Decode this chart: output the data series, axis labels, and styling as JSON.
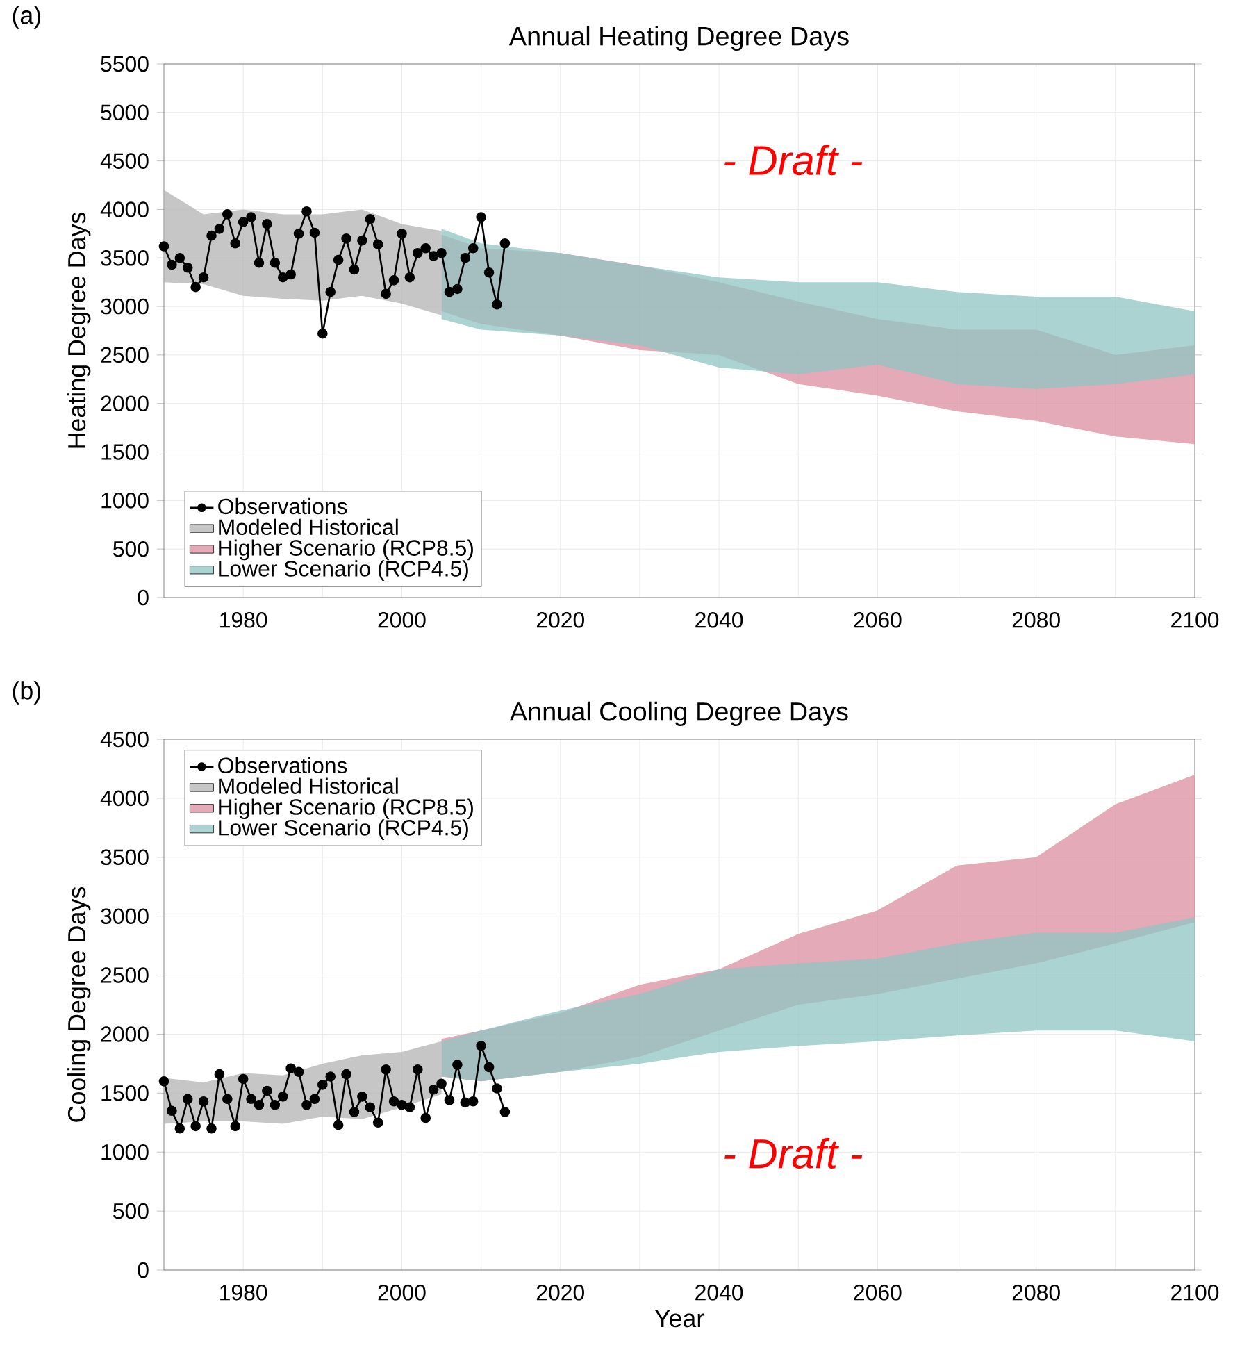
{
  "chart_data": [
    {
      "type": "area",
      "title": "Annual Heating Degree Days",
      "ylabel": "Heating Degree Days",
      "annotations": [
        "(a)",
        "- Draft -"
      ],
      "xlim": [
        1970,
        2100
      ],
      "xticks": [
        1980,
        2000,
        2020,
        2040,
        2060,
        2080,
        2100
      ],
      "ylim": [
        0,
        5500
      ],
      "yticks": [
        0,
        500,
        1000,
        1500,
        2000,
        2500,
        3000,
        3500,
        4000,
        4500,
        5000,
        5500
      ],
      "grid": true,
      "legend": "bottom left",
      "series": [
        {
          "name": "Observations",
          "type": "line",
          "color": "#000000",
          "marker": "circle",
          "line_style": "solid",
          "x": [
            1970,
            1971,
            1972,
            1973,
            1974,
            1975,
            1976,
            1977,
            1978,
            1979,
            1980,
            1981,
            1982,
            1983,
            1984,
            1985,
            1986,
            1987,
            1988,
            1989,
            1990,
            1991,
            1992,
            1993,
            1994,
            1995,
            1996,
            1997,
            1998,
            1999,
            2000,
            2001,
            2002,
            2003,
            2004,
            2005,
            2006,
            2007,
            2008,
            2009,
            2010,
            2011,
            2012,
            2013
          ],
          "values": [
            3620,
            3430,
            3500,
            3400,
            3200,
            3300,
            3730,
            3800,
            3950,
            3650,
            3870,
            3920,
            3450,
            3850,
            3450,
            3300,
            3330,
            3750,
            3980,
            3760,
            2720,
            3150,
            3480,
            3700,
            3380,
            3680,
            3900,
            3640,
            3130,
            3270,
            3750,
            3300,
            3550,
            3600,
            3520,
            3550,
            3150,
            3180,
            3500,
            3600,
            3920,
            3350,
            3020,
            3650
          ]
        },
        {
          "name": "Modeled Historical",
          "color": "#b3b3b3",
          "x": [
            1970,
            1975,
            1980,
            1985,
            1990,
            1995,
            2000,
            2005
          ],
          "values": [
            null,
            null,
            null,
            null,
            null,
            null,
            null,
            null
          ],
          "lower": [
            3250,
            3230,
            3110,
            3080,
            3060,
            3110,
            3030,
            2910
          ],
          "upper": [
            4200,
            3950,
            4000,
            3950,
            3950,
            4000,
            3850,
            3780
          ]
        },
        {
          "name": "Higher Scenario (RCP8.5)",
          "color": "#dc8ea0",
          "x": [
            2005,
            2010,
            2020,
            2030,
            2040,
            2050,
            2060,
            2070,
            2080,
            2090,
            2100
          ],
          "values": [
            null,
            null,
            null,
            null,
            null,
            null,
            null,
            null,
            null,
            null,
            null
          ],
          "lower": [
            2950,
            2820,
            2700,
            2550,
            2500,
            2200,
            2080,
            1920,
            1820,
            1660,
            1580
          ],
          "upper": [
            3740,
            3600,
            3550,
            3420,
            3250,
            3050,
            2870,
            2760,
            2760,
            2500,
            2600
          ]
        },
        {
          "name": "Lower Scenario (RCP4.5)",
          "color": "#8fc4c1",
          "x": [
            2005,
            2010,
            2020,
            2030,
            2040,
            2050,
            2060,
            2070,
            2080,
            2090,
            2100
          ],
          "values": [
            null,
            null,
            null,
            null,
            null,
            null,
            null,
            null,
            null,
            null,
            null
          ],
          "lower": [
            2870,
            2760,
            2700,
            2600,
            2370,
            2300,
            2400,
            2200,
            2150,
            2200,
            2300
          ],
          "upper": [
            3800,
            3650,
            3550,
            3420,
            3300,
            3250,
            3250,
            3150,
            3100,
            3100,
            2950
          ]
        }
      ]
    },
    {
      "type": "area",
      "title": "Annual Cooling Degree Days",
      "xlabel": "Year",
      "ylabel": "Cooling Degree Days",
      "annotations": [
        "(b)",
        "- Draft -"
      ],
      "xlim": [
        1970,
        2100
      ],
      "xticks": [
        1980,
        2000,
        2020,
        2040,
        2060,
        2080,
        2100
      ],
      "ylim": [
        0,
        4500
      ],
      "yticks": [
        0,
        500,
        1000,
        1500,
        2000,
        2500,
        3000,
        3500,
        4000,
        4500
      ],
      "grid": true,
      "legend": "top left",
      "series": [
        {
          "name": "Observations",
          "type": "line",
          "color": "#000000",
          "marker": "circle",
          "line_style": "solid",
          "x": [
            1970,
            1971,
            1972,
            1973,
            1974,
            1975,
            1976,
            1977,
            1978,
            1979,
            1980,
            1981,
            1982,
            1983,
            1984,
            1985,
            1986,
            1987,
            1988,
            1989,
            1990,
            1991,
            1992,
            1993,
            1994,
            1995,
            1996,
            1997,
            1998,
            1999,
            2000,
            2001,
            2002,
            2003,
            2004,
            2005,
            2006,
            2007,
            2008,
            2009,
            2010,
            2011,
            2012,
            2013
          ],
          "values": [
            1600,
            1350,
            1200,
            1450,
            1220,
            1430,
            1200,
            1660,
            1450,
            1220,
            1620,
            1450,
            1400,
            1520,
            1400,
            1470,
            1710,
            1680,
            1400,
            1450,
            1570,
            1640,
            1230,
            1660,
            1340,
            1470,
            1380,
            1250,
            1700,
            1430,
            1400,
            1380,
            1700,
            1290,
            1530,
            1580,
            1440,
            1740,
            1420,
            1430,
            1900,
            1720,
            1540,
            1340
          ]
        },
        {
          "name": "Modeled Historical",
          "color": "#b3b3b3",
          "x": [
            1970,
            1975,
            1980,
            1985,
            1990,
            1995,
            2000,
            2005
          ],
          "values": [
            null,
            null,
            null,
            null,
            null,
            null,
            null,
            null
          ],
          "lower": [
            1240,
            1260,
            1260,
            1240,
            1300,
            1280,
            1380,
            1490
          ],
          "upper": [
            1630,
            1590,
            1670,
            1650,
            1750,
            1820,
            1850,
            1940
          ]
        },
        {
          "name": "Higher Scenario (RCP8.5)",
          "color": "#dc8ea0",
          "x": [
            2005,
            2010,
            2020,
            2030,
            2040,
            2050,
            2060,
            2070,
            2080,
            2090,
            2100
          ],
          "values": [
            null,
            null,
            null,
            null,
            null,
            null,
            null,
            null,
            null,
            null,
            null
          ],
          "lower": [
            1640,
            1600,
            1680,
            1810,
            2030,
            2250,
            2340,
            2470,
            2600,
            2770,
            2950
          ],
          "upper": [
            1960,
            2030,
            2180,
            2420,
            2550,
            2850,
            3050,
            3430,
            3500,
            3950,
            4200
          ]
        },
        {
          "name": "Lower Scenario (RCP4.5)",
          "color": "#8fc4c1",
          "x": [
            2005,
            2010,
            2020,
            2030,
            2040,
            2050,
            2060,
            2070,
            2080,
            2090,
            2100
          ],
          "values": [
            null,
            null,
            null,
            null,
            null,
            null,
            null,
            null,
            null,
            null,
            null
          ],
          "lower": [
            1640,
            1600,
            1680,
            1750,
            1850,
            1900,
            1940,
            1990,
            2030,
            2030,
            1940
          ],
          "upper": [
            1940,
            2030,
            2200,
            2340,
            2550,
            2600,
            2640,
            2770,
            2860,
            2860,
            2990
          ]
        }
      ]
    }
  ]
}
